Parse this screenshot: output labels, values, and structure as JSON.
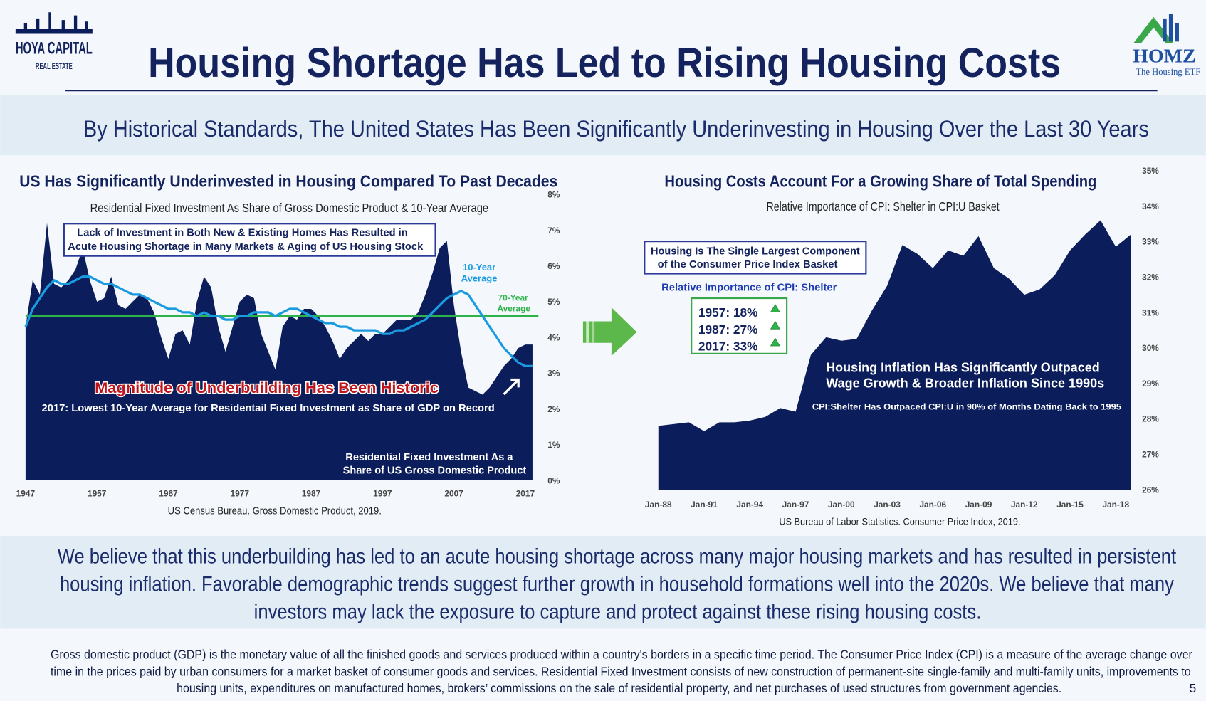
{
  "header": {
    "title": "Housing Shortage Has Led to Rising Housing Costs",
    "logo_left": [
      "HOYA CAPITAL",
      "REAL ESTATE"
    ],
    "logo_right": [
      "HOMZ",
      "The Housing ETF"
    ]
  },
  "subtitle": "By Historical Standards, The United States Has Been Significantly Underinvesting in Housing Over the Last 30 Years",
  "chart_data": [
    {
      "type": "area",
      "title": "US Has Significantly Underinvested in Housing Compared To Past Decades",
      "subtitle": "Residential Fixed Investment As Share of Gross Domestic Product & 10-Year Average",
      "x": [
        1947,
        1948,
        1949,
        1950,
        1951,
        1952,
        1953,
        1954,
        1955,
        1956,
        1957,
        1958,
        1959,
        1960,
        1961,
        1962,
        1963,
        1964,
        1965,
        1966,
        1967,
        1968,
        1969,
        1970,
        1971,
        1972,
        1973,
        1974,
        1975,
        1976,
        1977,
        1978,
        1979,
        1980,
        1981,
        1982,
        1983,
        1984,
        1985,
        1986,
        1987,
        1988,
        1989,
        1990,
        1991,
        1992,
        1993,
        1994,
        1995,
        1996,
        1997,
        1998,
        1999,
        2000,
        2001,
        2002,
        2003,
        2004,
        2005,
        2006,
        2007,
        2008,
        2009,
        2010,
        2011,
        2012,
        2013,
        2014,
        2015,
        2016,
        2017,
        2018
      ],
      "series": [
        {
          "name": [
            "Residential Fixed Investment As a",
            "Share of US Gross Domestic Product"
          ],
          "color": "#0b1d5a",
          "values": [
            4.3,
            5.6,
            5.2,
            7.2,
            5.5,
            5.4,
            5.6,
            5.9,
            6.5,
            5.6,
            5.0,
            5.1,
            5.7,
            4.9,
            4.8,
            5.0,
            5.2,
            5.1,
            4.7,
            4.0,
            3.4,
            4.1,
            4.2,
            3.8,
            5.0,
            5.7,
            5.4,
            4.3,
            3.6,
            4.3,
            5.0,
            5.2,
            5.1,
            4.1,
            3.6,
            3.1,
            4.3,
            4.6,
            4.5,
            4.8,
            4.8,
            4.6,
            4.3,
            3.9,
            3.4,
            3.7,
            3.9,
            4.1,
            3.9,
            4.1,
            4.1,
            4.3,
            4.5,
            4.5,
            4.5,
            4.7,
            5.2,
            5.8,
            6.5,
            6.7,
            4.9,
            3.6,
            2.6,
            2.5,
            2.4,
            2.6,
            2.9,
            3.2,
            3.4,
            3.7,
            3.8,
            3.8
          ]
        },
        {
          "name": [
            "10-Year",
            "Average"
          ],
          "color": "#1a9be0",
          "values": [
            4.3,
            4.8,
            5.1,
            5.4,
            5.6,
            5.5,
            5.5,
            5.6,
            5.7,
            5.7,
            5.6,
            5.5,
            5.5,
            5.4,
            5.3,
            5.2,
            5.2,
            5.1,
            5.0,
            4.9,
            4.8,
            4.8,
            4.7,
            4.7,
            4.6,
            4.7,
            4.6,
            4.6,
            4.5,
            4.5,
            4.6,
            4.6,
            4.7,
            4.7,
            4.7,
            4.6,
            4.7,
            4.8,
            4.8,
            4.7,
            4.6,
            4.5,
            4.4,
            4.4,
            4.3,
            4.3,
            4.2,
            4.2,
            4.2,
            4.2,
            4.1,
            4.1,
            4.2,
            4.2,
            4.3,
            4.4,
            4.5,
            4.7,
            4.9,
            5.1,
            5.2,
            5.3,
            5.2,
            4.9,
            4.6,
            4.3,
            4.0,
            3.7,
            3.5,
            3.3,
            3.2,
            3.2
          ]
        }
      ],
      "reference_lines": [
        {
          "name": [
            "70-Year",
            "Average"
          ],
          "value": 4.6,
          "color": "#2db34a"
        }
      ],
      "xlim": [
        1947,
        2019
      ],
      "xticks": [
        1947,
        1957,
        1967,
        1977,
        1987,
        1997,
        2007,
        2017
      ],
      "ylim": [
        0,
        8
      ],
      "yticks": [
        {
          "value": 0,
          "label": "0%"
        },
        {
          "value": 1,
          "label": "1%"
        },
        {
          "value": 2,
          "label": "2%"
        },
        {
          "value": 3,
          "label": "3%"
        },
        {
          "value": 4,
          "label": "4%"
        },
        {
          "value": 5,
          "label": "5%"
        },
        {
          "value": 6,
          "label": "6%"
        },
        {
          "value": 7,
          "label": "7%"
        },
        {
          "value": 8,
          "label": "8%"
        }
      ],
      "note": [
        "Lack of Investment in Both New & Existing Homes Has Resulted in",
        "Acute Housing Shortage in Many Markets & Aging of US Housing Stock"
      ],
      "headline": "Magnitude of Underbuilding Has Been Historic",
      "callout": "2017: Lowest 10-Year Average for Residentail Fixed Investment as Share of GDP on Record",
      "source": "US Census Bureau. Gross Domestic Product, 2019."
    },
    {
      "type": "area",
      "title": "Housing Costs Account For a Growing Share of Total Spending",
      "subtitle": "Relative Importance of CPI: Shelter in CPI:U Basket",
      "categories": [
        "Jan-88",
        null,
        null,
        "Jan-91",
        null,
        null,
        "Jan-94",
        null,
        null,
        "Jan-97",
        null,
        null,
        "Jan-00",
        null,
        null,
        "Jan-03",
        null,
        null,
        "Jan-06",
        null,
        null,
        "Jan-09",
        null,
        null,
        "Jan-12",
        null,
        null,
        "Jan-15",
        null,
        null,
        "Jan-18",
        null
      ],
      "values": [
        27.8,
        27.85,
        27.9,
        27.65,
        27.9,
        27.9,
        27.95,
        28.05,
        28.3,
        28.2,
        29.8,
        30.3,
        30.2,
        30.25,
        31.05,
        31.75,
        32.9,
        32.65,
        32.25,
        32.75,
        32.6,
        33.15,
        32.25,
        31.95,
        31.5,
        31.65,
        32.05,
        32.75,
        33.2,
        33.6,
        32.85,
        33.2
      ],
      "color": "#0b1d5a",
      "ylim": [
        26,
        35
      ],
      "yticks": [
        {
          "value": 26,
          "label": "26%"
        },
        {
          "value": 27,
          "label": "27%"
        },
        {
          "value": 28,
          "label": "28%"
        },
        {
          "value": 29,
          "label": "29%"
        },
        {
          "value": 30,
          "label": "30%"
        },
        {
          "value": 31,
          "label": "31%"
        },
        {
          "value": 32,
          "label": "32%"
        },
        {
          "value": 33,
          "label": "33%"
        },
        {
          "value": 34,
          "label": "34%"
        },
        {
          "value": 35,
          "label": "35%"
        }
      ],
      "note": [
        "Housing Is The Single Largest Component",
        "of the Consumer Price Index Basket"
      ],
      "stats_title": "Relative Importance of CPI: Shelter",
      "stats": [
        "1957: 18%",
        "1987: 27%",
        "2017: 33%"
      ],
      "headline": [
        "Housing Inflation Has Significantly Outpaced",
        "Wage Growth & Broader Inflation Since 1990s"
      ],
      "callout": "CPI:Shelter Has Outpaced CPI:U in 90% of Months Dating Back to 1995",
      "source": "US Bureau of Labor Statistics. Consumer Price Index, 2019."
    }
  ],
  "summary": [
    "We believe that this underbuilding has led to an acute housing shortage across many major housing markets and has resulted in persistent",
    "housing inflation. Favorable demographic trends suggest further growth in household formations well into the 2020s. We believe that many",
    "investors may lack the exposure to capture and protect against these rising housing costs."
  ],
  "footnote": [
    "Gross domestic product (GDP) is the monetary value of all the finished goods and services produced within a country's borders in a specific time period. The Consumer Price Index (CPI) is a measure of the average change over",
    "time in the prices paid by urban consumers for a market basket of consumer goods and services. Residential Fixed Investment consists of new construction of permanent-site single-family and multi-family units, improvements to",
    "housing units, expenditures on manufactured homes, brokers’ commissions on the sale of residential property, and net purchases of used structures from government agencies."
  ],
  "page_number": "5"
}
